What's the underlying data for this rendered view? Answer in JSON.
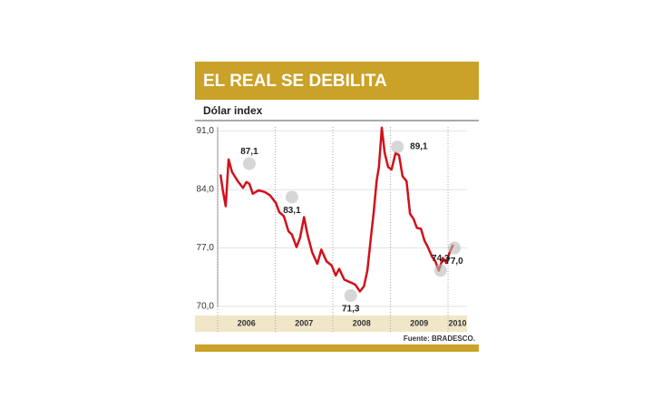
{
  "chart_data": {
    "type": "line",
    "title": "EL REAL SE DEBILITA",
    "subtitle": "Dólar index",
    "source": "Fuente: BRADESCO.",
    "xlim": [
      2006,
      2010.33
    ],
    "xticks": [
      2006,
      2007,
      2008,
      2009,
      2010
    ],
    "years": [
      "2006",
      "2007",
      "2008",
      "2009",
      "2010"
    ],
    "ylim": [
      70,
      91.5
    ],
    "yticks": [
      {
        "value": 70,
        "label": "70,0"
      },
      {
        "value": 77,
        "label": "77,0"
      },
      {
        "value": 84,
        "label": "84,0"
      },
      {
        "value": 91,
        "label": "91,0"
      }
    ],
    "grid": true,
    "series": [
      {
        "color": "#d0111b",
        "x": [
          2006.05,
          2006.09,
          2006.14,
          2006.19,
          2006.25,
          2006.35,
          2006.44,
          2006.5,
          2006.55,
          2006.61,
          2006.71,
          2006.82,
          2006.91,
          2007.01,
          2007.07,
          2007.15,
          2007.23,
          2007.29,
          2007.37,
          2007.43,
          2007.5,
          2007.56,
          2007.64,
          2007.73,
          2007.8,
          2007.89,
          2007.98,
          2008.05,
          2008.11,
          2008.2,
          2008.3,
          2008.39,
          2008.47,
          2008.54,
          2008.6,
          2008.66,
          2008.71,
          2008.76,
          2008.8,
          2008.85,
          2008.9,
          2008.96,
          2009.02,
          2009.09,
          2009.15,
          2009.21,
          2009.28,
          2009.34,
          2009.4,
          2009.46,
          2009.53,
          2009.59,
          2009.65,
          2009.72,
          2009.78,
          2009.84,
          2009.91,
          2009.97,
          2010.03,
          2010.09
        ],
        "values": [
          85.8,
          83.9,
          82.0,
          87.6,
          86.1,
          85.0,
          84.2,
          84.9,
          84.7,
          83.5,
          83.9,
          83.7,
          83.3,
          82.4,
          81.3,
          80.8,
          79.0,
          78.6,
          77.1,
          78.2,
          80.7,
          78.6,
          76.5,
          75.1,
          76.8,
          75.4,
          74.9,
          73.7,
          74.5,
          73.2,
          72.9,
          72.6,
          71.8,
          72.4,
          74.3,
          78.2,
          81.3,
          85.0,
          86.7,
          91.4,
          88.4,
          86.7,
          86.4,
          88.4,
          88.1,
          85.6,
          85.0,
          81.1,
          80.5,
          79.4,
          79.3,
          77.9,
          77.1,
          76.0,
          75.4,
          74.3,
          75.8,
          75.2,
          76.5,
          77.4
        ]
      }
    ],
    "annotations": {
      "x": [
        2006.55,
        2007.29,
        2008.31,
        2009.12,
        2009.87,
        2010.11
      ],
      "values": [
        87.1,
        83.1,
        71.3,
        89.1,
        74.3,
        77.0
      ],
      "value_labels": [
        "87,1",
        "83,1",
        "71,3",
        "89,1",
        "74,3",
        "77,0"
      ]
    }
  }
}
